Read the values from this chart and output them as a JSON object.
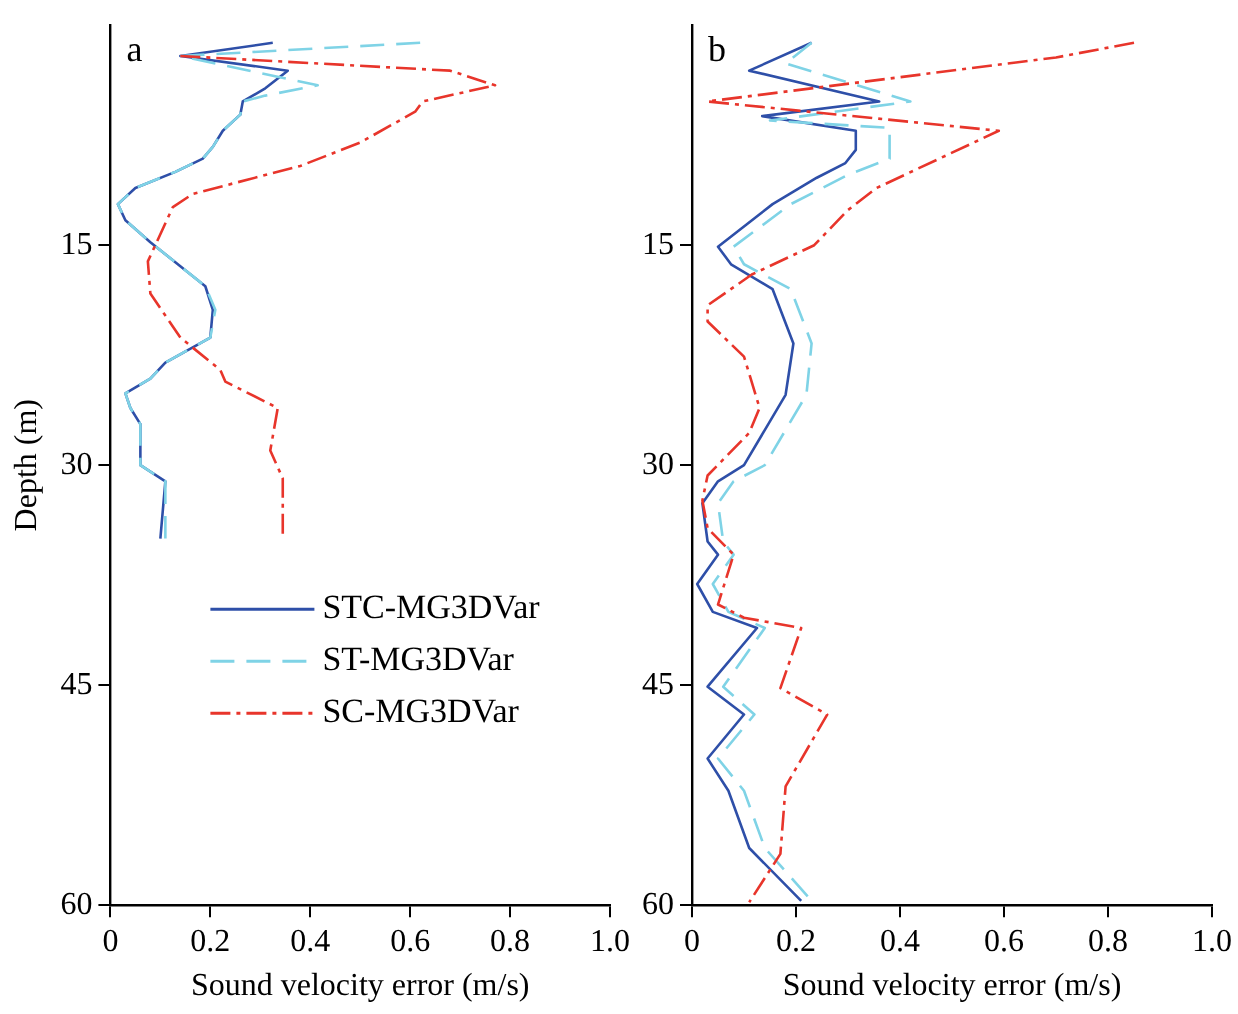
{
  "chart_data": [
    {
      "type": "line",
      "title": "a",
      "xlabel": "Sound velocity error (m/s)",
      "ylabel": "Depth (m)",
      "xlim": [
        0,
        1
      ],
      "xticks": [
        0,
        0.2,
        0.4,
        0.6,
        0.8,
        {
          "value": 1,
          "label": "1.0"
        }
      ],
      "ylim": [
        60,
        0
      ],
      "yticks": [
        15,
        30,
        45,
        60
      ],
      "legend": "bottom",
      "marker": "none",
      "series": [
        {
          "name": "STC-MG3DVar",
          "color": "#2e4fa8",
          "line_style": "solid",
          "x": [
            0.325,
            0.14,
            0.355,
            0.31,
            0.265,
            0.26,
            0.225,
            0.205,
            0.185,
            0.13,
            0.05,
            0.015,
            0.03,
            0.08,
            0.19,
            0.205,
            0.2,
            0.11,
            0.08,
            0.03,
            0.04,
            0.06,
            0.06,
            0.11,
            0.1
          ],
          "values": [
            1.2,
            2.1,
            3.1,
            4.3,
            5.2,
            6.1,
            7.2,
            8.3,
            9.1,
            10,
            11.1,
            12.2,
            13.3,
            14.8,
            17.8,
            19.4,
            21.3,
            23,
            24.1,
            25.1,
            26.1,
            27.2,
            30,
            31.1,
            35
          ]
        },
        {
          "name": "ST-MG3DVar",
          "color": "#7fd3e6",
          "line_style": "dashed",
          "x": [
            0.62,
            0.14,
            0.415,
            0.31,
            0.265,
            0.26,
            0.225,
            0.205,
            0.185,
            0.13,
            0.05,
            0.015,
            0.03,
            0.08,
            0.19,
            0.21,
            0.2,
            0.11,
            0.08,
            0.03,
            0.04,
            0.06,
            0.06,
            0.11,
            0.11
          ],
          "values": [
            1.2,
            2.1,
            4.1,
            4.8,
            5.2,
            6.1,
            7.2,
            8.3,
            9.1,
            10,
            11.1,
            12.2,
            13.3,
            14.8,
            17.8,
            19.4,
            21.3,
            23,
            24.1,
            25.1,
            26.1,
            27.2,
            30,
            31.1,
            35
          ]
        },
        {
          "name": "SC-MG3DVar",
          "color": "#e8352b",
          "line_style": "dotted",
          "x": [
            0.14,
            0.68,
            0.77,
            0.625,
            0.61,
            0.5,
            0.38,
            0.165,
            0.125,
            0.075,
            0.08,
            0.14,
            0.22,
            0.23,
            0.335,
            0.32,
            0.345,
            0.345
          ],
          "values": [
            2.1,
            3.1,
            4.1,
            5.2,
            5.9,
            8,
            9.6,
            11.5,
            12.4,
            16.1,
            18.3,
            21.3,
            23.5,
            24.3,
            26.1,
            29,
            30.9,
            35
          ]
        }
      ]
    },
    {
      "type": "line",
      "title": "b",
      "xlabel": "Sound velocity error (m/s)",
      "xlim": [
        0,
        1
      ],
      "xticks": [
        0,
        0.2,
        0.4,
        0.6,
        0.8,
        {
          "value": 1,
          "label": "1.0"
        }
      ],
      "ylim": [
        60,
        0
      ],
      "yticks": [
        15,
        30,
        45,
        60
      ],
      "marker": "none",
      "series": [
        {
          "color": "#2e4fa8",
          "line_style": "solid",
          "x": [
            0.23,
            0.11,
            0.36,
            0.135,
            0.315,
            0.315,
            0.295,
            0.24,
            0.155,
            0.05,
            0.075,
            0.155,
            0.195,
            0.18,
            0.1,
            0.05,
            0.02,
            0.03,
            0.05,
            0.01,
            0.04,
            0.125,
            0.03,
            0.1,
            0.03,
            0.07,
            0.11,
            0.21
          ],
          "values": [
            1.2,
            3.1,
            5.2,
            6.2,
            7.2,
            8.5,
            9.4,
            10.4,
            12.2,
            15.1,
            16.3,
            18,
            21.7,
            25.2,
            30,
            31.1,
            32.6,
            35.2,
            36.1,
            38.1,
            40,
            41.1,
            45.1,
            47,
            50,
            52.2,
            56.1,
            59.7
          ]
        },
        {
          "color": "#7fd3e6",
          "line_style": "dashed",
          "x": [
            0.23,
            0.18,
            0.42,
            0.15,
            0.38,
            0.38,
            0.3,
            0.19,
            0.08,
            0.1,
            0.19,
            0.23,
            0.22,
            0.14,
            0.08,
            0.05,
            0.06,
            0.08,
            0.04,
            0.07,
            0.14,
            0.06,
            0.12,
            0.05,
            0.1,
            0.14,
            0.23
          ],
          "values": [
            1.2,
            2.6,
            5.2,
            6.5,
            7,
            9.1,
            10.2,
            12.2,
            15.1,
            16.3,
            18,
            21.7,
            25.2,
            30,
            31.1,
            32.6,
            35.2,
            36.1,
            38.1,
            40,
            41.1,
            45.1,
            47,
            50,
            52.2,
            56.1,
            59.7
          ]
        },
        {
          "color": "#e8352b",
          "line_style": "dotted",
          "x": [
            0.85,
            0.7,
            0.03,
            0.59,
            0.355,
            0.3,
            0.235,
            0.115,
            0.03,
            0.03,
            0.1,
            0.13,
            0.11,
            0.03,
            0.02,
            0.03,
            0.08,
            0.05,
            0.1,
            0.21,
            0.17,
            0.26,
            0.18,
            0.17,
            0.11
          ],
          "values": [
            1.2,
            2.2,
            5.2,
            7.2,
            11.1,
            12.6,
            15,
            17,
            19.1,
            20.2,
            22.6,
            26.1,
            27.8,
            30.7,
            32.4,
            34.3,
            36.1,
            39.5,
            40.4,
            41.1,
            45.2,
            47,
            51.9,
            56.5,
            59.8
          ]
        }
      ]
    }
  ]
}
